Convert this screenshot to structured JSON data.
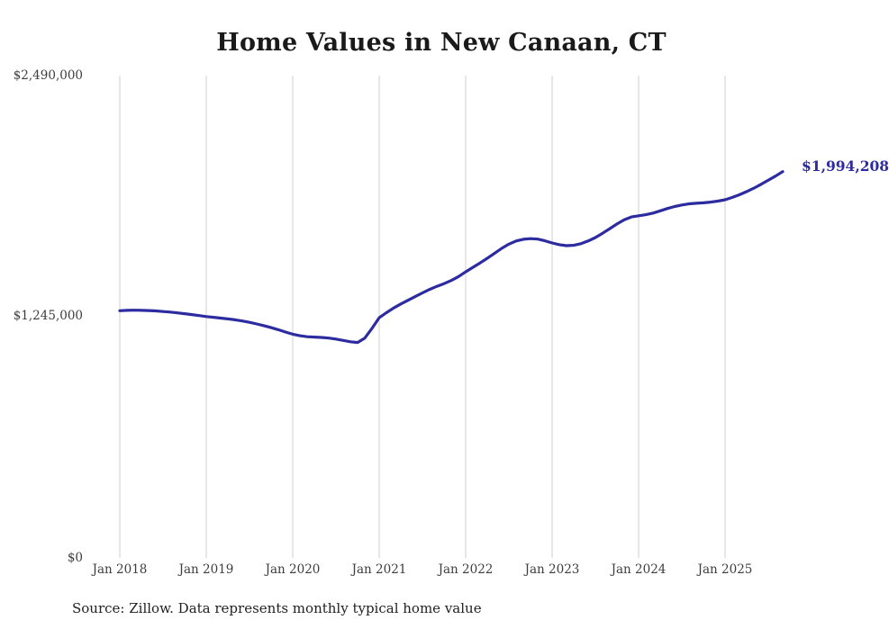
{
  "page": {
    "title": "Home Values in New Canaan, CT",
    "source_note": "Source: Zillow. Data represents monthly typical home value",
    "end_value_label": "$1,994,208"
  },
  "colors": {
    "line": "#2d2ba0",
    "grid": "#cfcfcf",
    "title_text": "#1a1a1a",
    "axis_text": "#3d3d3d"
  },
  "chart_data": {
    "type": "line",
    "title": "Home Values in New Canaan, CT",
    "xlabel": "",
    "ylabel": "",
    "ylim": [
      0,
      2490000
    ],
    "y_tick_values": [
      0,
      1245000,
      2490000
    ],
    "y_tick_labels": [
      "$0",
      "$1,245,000",
      "$2,490,000"
    ],
    "x_tick_labels": [
      "Jan 2018",
      "Jan 2019",
      "Jan 2020",
      "Jan 2021",
      "Jan 2022",
      "Jan 2023",
      "Jan 2024",
      "Jan 2025"
    ],
    "grid": "vertical-only",
    "legend": "none",
    "series": [
      {
        "name": "Typical home value",
        "frequency": "monthly",
        "end_value": 1994208,
        "end_annotation": "$1,994,208",
        "months": [
          "2018-01",
          "2018-02",
          "2018-03",
          "2018-04",
          "2018-05",
          "2018-06",
          "2018-07",
          "2018-08",
          "2018-09",
          "2018-10",
          "2018-11",
          "2018-12",
          "2019-01",
          "2019-02",
          "2019-03",
          "2019-04",
          "2019-05",
          "2019-06",
          "2019-07",
          "2019-08",
          "2019-09",
          "2019-10",
          "2019-11",
          "2019-12",
          "2020-01",
          "2020-02",
          "2020-03",
          "2020-04",
          "2020-05",
          "2020-06",
          "2020-07",
          "2020-08",
          "2020-09",
          "2020-10",
          "2020-11",
          "2020-12",
          "2021-01",
          "2021-02",
          "2021-03",
          "2021-04",
          "2021-05",
          "2021-06",
          "2021-07",
          "2021-08",
          "2021-09",
          "2021-10",
          "2021-11",
          "2021-12",
          "2022-01",
          "2022-02",
          "2022-03",
          "2022-04",
          "2022-05",
          "2022-06",
          "2022-07",
          "2022-08",
          "2022-09",
          "2022-10",
          "2022-11",
          "2022-12",
          "2023-01",
          "2023-02",
          "2023-03",
          "2023-04",
          "2023-05",
          "2023-06",
          "2023-07",
          "2023-08",
          "2023-09",
          "2023-10",
          "2023-11",
          "2023-12",
          "2024-01",
          "2024-02",
          "2024-03",
          "2024-04",
          "2024-05",
          "2024-06",
          "2024-07",
          "2024-08",
          "2024-09",
          "2024-10",
          "2024-11",
          "2024-12",
          "2025-01",
          "2025-02",
          "2025-03",
          "2025-04",
          "2025-05",
          "2025-06",
          "2025-07",
          "2025-08",
          "2025-09"
        ],
        "values": [
          1276000,
          1278000,
          1279000,
          1278000,
          1277000,
          1275000,
          1272000,
          1269000,
          1265000,
          1261000,
          1256000,
          1251000,
          1246000,
          1242000,
          1238000,
          1234000,
          1229000,
          1223000,
          1216000,
          1208000,
          1199000,
          1189000,
          1178000,
          1166000,
          1155000,
          1147000,
          1142000,
          1140000,
          1138000,
          1135000,
          1130000,
          1123000,
          1116000,
          1112000,
          1135000,
          1185000,
          1240000,
          1266000,
          1290000,
          1311000,
          1330000,
          1349000,
          1368000,
          1386000,
          1402000,
          1416000,
          1432000,
          1452000,
          1477000,
          1500000,
          1523000,
          1547000,
          1572000,
          1598000,
          1620000,
          1636000,
          1645000,
          1648000,
          1646000,
          1637000,
          1626000,
          1617000,
          1612000,
          1614000,
          1622000,
          1636000,
          1654000,
          1676000,
          1700000,
          1724000,
          1746000,
          1760000,
          1766000,
          1772000,
          1780000,
          1792000,
          1804000,
          1814000,
          1822000,
          1828000,
          1831000,
          1833000,
          1837000,
          1842000,
          1849000,
          1861000,
          1875000,
          1891000,
          1909000,
          1929000,
          1950000,
          1971000,
          1994208
        ]
      }
    ]
  }
}
